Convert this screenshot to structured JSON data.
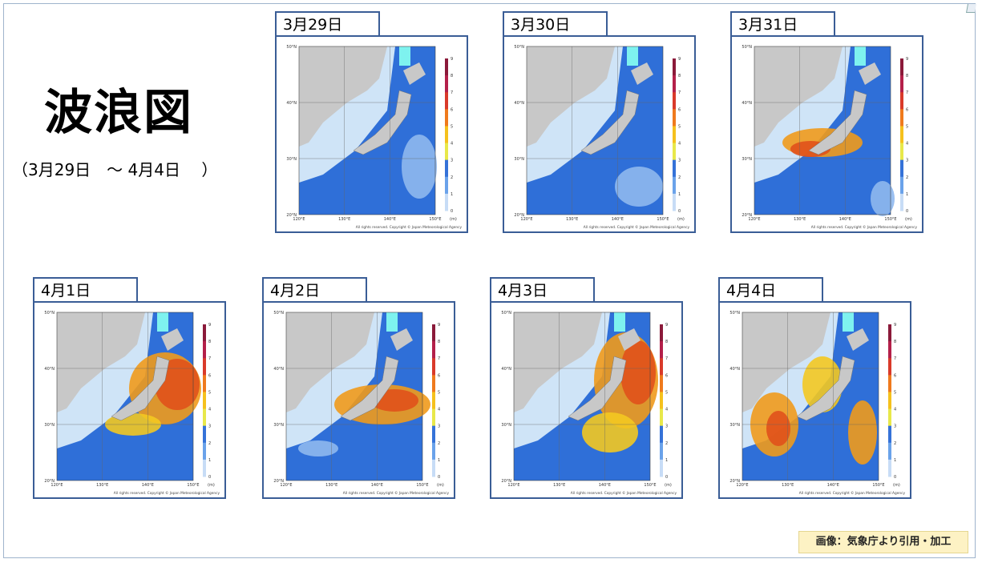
{
  "title": "波浪図",
  "subtitle": "（3月29日　～ 4月4日　 ）",
  "credit": "画像：気象庁より引用・加工",
  "map_common": {
    "lat_labels": [
      "50°N",
      "40°N",
      "30°N",
      "20°N"
    ],
    "lon_labels": [
      "120°E",
      "130°E",
      "140°E",
      "150°E"
    ],
    "scale_labels": [
      "9",
      "8",
      "7",
      "6",
      "5",
      "4",
      "3",
      "2",
      "1",
      "0"
    ],
    "unit": "(m)",
    "copyright": "All rights reserved. Copyright © Japan Meteorological Agency"
  },
  "panels": [
    {
      "date": "3月29日",
      "max_wave": 3
    },
    {
      "date": "3月30日",
      "max_wave": 3
    },
    {
      "date": "3月31日",
      "max_wave": 5
    },
    {
      "date": "4月1日",
      "max_wave": 6
    },
    {
      "date": "4月2日",
      "max_wave": 5
    },
    {
      "date": "4月3日",
      "max_wave": 6
    },
    {
      "date": "4月4日",
      "max_wave": 4
    }
  ],
  "colors": {
    "border": "#3a5d96",
    "land": "#c8c8c8",
    "sea_low": "#cfe4f7",
    "sea_mid": "#2f6fd8",
    "high": "#f5c400",
    "peak": "#e05a1a"
  }
}
